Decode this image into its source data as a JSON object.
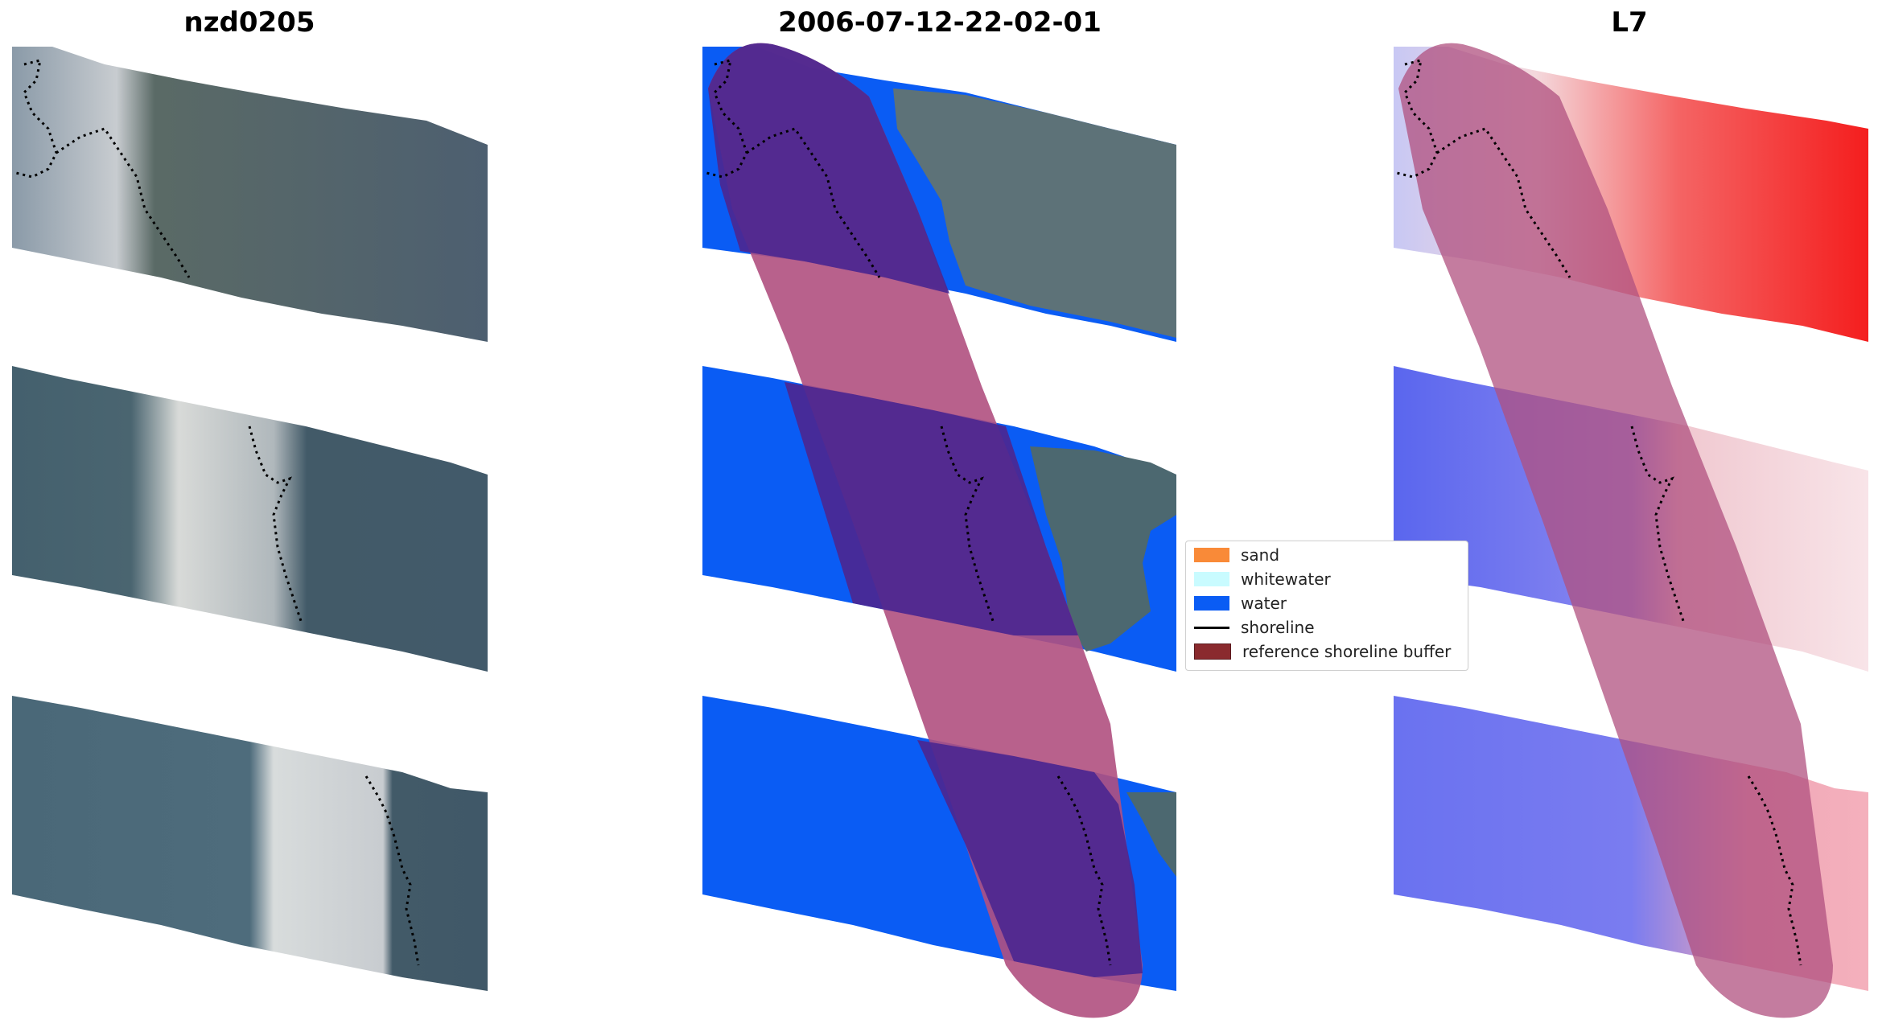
{
  "panels": [
    {
      "title": "nzd0205"
    },
    {
      "title": "2006-07-12-22-02-01"
    },
    {
      "title": "L7"
    }
  ],
  "legend": {
    "items": [
      {
        "label": "sand",
        "color": "#f98a38",
        "kind": "patch"
      },
      {
        "label": "whitewater",
        "color": "#c9fbff",
        "kind": "patch"
      },
      {
        "label": "water",
        "color": "#0a5cf4",
        "kind": "patch"
      },
      {
        "label": "shoreline",
        "color": "#000000",
        "kind": "line"
      },
      {
        "label": "reference shoreline buffer",
        "color": "#8a2a2e",
        "kind": "patch"
      }
    ]
  },
  "colors": {
    "water": "#0a5cf4",
    "land": "#4a6070",
    "buffer": "#b0507f",
    "buffer_dark": "#4c2790",
    "index_water": "#5a66ee",
    "index_land": "#ee3a3a"
  }
}
